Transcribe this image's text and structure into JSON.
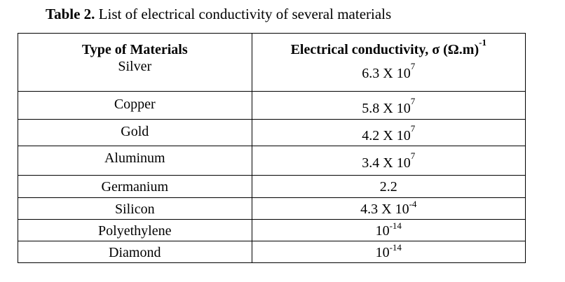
{
  "caption": {
    "label": "Table 2.",
    "text": " List of electrical conductivity of several materials"
  },
  "table": {
    "headers": {
      "material": "Type of Materials",
      "conductivity": "Electrical conductivity, σ (Ω.m)",
      "conductivity_unit_exp": "-1"
    },
    "rows": [
      {
        "material": "Silver",
        "mantissa": "6.3 X 10",
        "exponent": "7"
      },
      {
        "material": "Copper",
        "mantissa": "5.8 X 10",
        "exponent": "7"
      },
      {
        "material": "Gold",
        "mantissa": "4.2 X 10",
        "exponent": "7"
      },
      {
        "material": "Aluminum",
        "mantissa": "3.4 X 10",
        "exponent": "7"
      },
      {
        "material": "Germanium",
        "mantissa": "2.2",
        "exponent": ""
      },
      {
        "material": "Silicon",
        "mantissa": "4.3 X 10",
        "exponent": "-4"
      },
      {
        "material": "Polyethylene",
        "mantissa": "10",
        "exponent": "-14"
      },
      {
        "material": "Diamond",
        "mantissa": "10",
        "exponent": "-14"
      }
    ]
  }
}
